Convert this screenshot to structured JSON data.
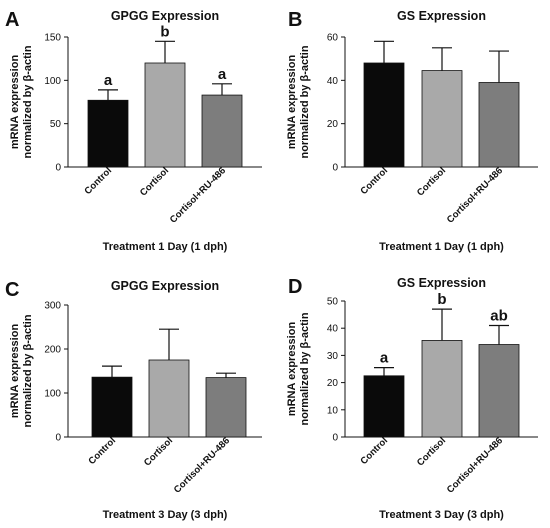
{
  "chart_data": [
    {
      "panel": "A",
      "type": "bar",
      "title": "GPGG Expression",
      "categories": [
        "Control",
        "Cortisol",
        "Cortisol+RU-486"
      ],
      "values": [
        77,
        120,
        83
      ],
      "errors": [
        12,
        25,
        13
      ],
      "significance": [
        "a",
        "b",
        "a"
      ],
      "colors": [
        "#0a0a0a",
        "#a9a9a9",
        "#7d7d7d"
      ],
      "ylabel_line1": "mRNA expression",
      "ylabel_line2": "normalized by β-actin",
      "xlabel": "Treatment 1 Day (1 dph)",
      "ylim": [
        0,
        150
      ],
      "yticks": [
        0,
        50,
        100,
        150
      ],
      "grid": false
    },
    {
      "panel": "B",
      "type": "bar",
      "title": "GS Expression",
      "categories": [
        "Control",
        "Cortisol",
        "Cortisol+RU-486"
      ],
      "values": [
        48,
        44.5,
        39
      ],
      "errors": [
        10,
        10.5,
        14.5
      ],
      "significance": [],
      "colors": [
        "#0a0a0a",
        "#a9a9a9",
        "#7d7d7d"
      ],
      "ylabel_line1": "mRNA expression",
      "ylabel_line2": "normalized by β-actin",
      "xlabel": "Treatment 1 Day (1 dph)",
      "ylim": [
        0,
        60
      ],
      "yticks": [
        0,
        20,
        40,
        60
      ],
      "grid": false
    },
    {
      "panel": "C",
      "type": "bar",
      "title": "GPGG Expression",
      "categories": [
        "Control",
        "Cortisol",
        "Cortisol+RU-486"
      ],
      "values": [
        136,
        175,
        135
      ],
      "errors": [
        25,
        70,
        10
      ],
      "significance": [],
      "colors": [
        "#0a0a0a",
        "#a9a9a9",
        "#7d7d7d"
      ],
      "ylabel_line1": "mRNA expression",
      "ylabel_line2": "normalized by β-actin",
      "xlabel": "Treatment 3 Day (3 dph)",
      "ylim": [
        0,
        300
      ],
      "yticks": [
        0,
        100,
        200,
        300
      ],
      "grid": false
    },
    {
      "panel": "D",
      "type": "bar",
      "title": "GS Expression",
      "categories": [
        "Control",
        "Cortisol",
        "Cortisol+RU-486"
      ],
      "values": [
        22.5,
        35.5,
        34
      ],
      "errors": [
        3,
        11.5,
        7
      ],
      "significance": [
        "a",
        "b",
        "ab"
      ],
      "colors": [
        "#0a0a0a",
        "#a9a9a9",
        "#7d7d7d"
      ],
      "ylabel_line1": "mRNA expression",
      "ylabel_line2": "normalized by β-actin",
      "xlabel": "Treatment 3 Day (3 dph)",
      "ylim": [
        0,
        50
      ],
      "yticks": [
        0,
        10,
        20,
        30,
        40,
        50
      ],
      "grid": false
    }
  ]
}
